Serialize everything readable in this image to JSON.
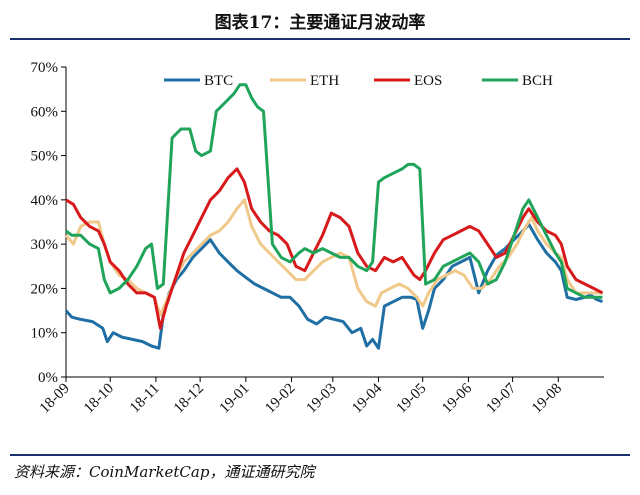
{
  "title": "图表17：主要通证月波动率",
  "source": "资料来源：CoinMarketCap，通证通研究院",
  "chart_data": {
    "type": "line",
    "ylim": [
      0,
      70
    ],
    "yticks": [
      0,
      10,
      20,
      30,
      40,
      50,
      60,
      70
    ],
    "y_tick_suffix": "%",
    "x_range": [
      0,
      365
    ],
    "xticks": [
      {
        "label": "18-09",
        "x": 0
      },
      {
        "label": "18-10",
        "x": 30
      },
      {
        "label": "18-11",
        "x": 61
      },
      {
        "label": "18-12",
        "x": 91
      },
      {
        "label": "19-01",
        "x": 122
      },
      {
        "label": "19-02",
        "x": 153
      },
      {
        "label": "19-03",
        "x": 181
      },
      {
        "label": "19-04",
        "x": 212
      },
      {
        "label": "19-05",
        "x": 242
      },
      {
        "label": "19-06",
        "x": 273
      },
      {
        "label": "19-07",
        "x": 303
      },
      {
        "label": "19-08",
        "x": 334
      }
    ],
    "legend_position": "top",
    "series": [
      {
        "name": "BTC",
        "color": "#1f6fa5",
        "points": [
          [
            0,
            15
          ],
          [
            4,
            13.5
          ],
          [
            10,
            13
          ],
          [
            18,
            12.5
          ],
          [
            25,
            11
          ],
          [
            28,
            8
          ],
          [
            32,
            10
          ],
          [
            38,
            9
          ],
          [
            45,
            8.5
          ],
          [
            52,
            8
          ],
          [
            58,
            7
          ],
          [
            63,
            6.5
          ],
          [
            66,
            14
          ],
          [
            70,
            19
          ],
          [
            75,
            22
          ],
          [
            80,
            24
          ],
          [
            86,
            27
          ],
          [
            92,
            29
          ],
          [
            98,
            31
          ],
          [
            104,
            28
          ],
          [
            110,
            26
          ],
          [
            116,
            24
          ],
          [
            122,
            22.5
          ],
          [
            128,
            21
          ],
          [
            134,
            20
          ],
          [
            140,
            19
          ],
          [
            146,
            18
          ],
          [
            152,
            18
          ],
          [
            158,
            16
          ],
          [
            164,
            13
          ],
          [
            170,
            12
          ],
          [
            176,
            13.5
          ],
          [
            182,
            13
          ],
          [
            188,
            12.5
          ],
          [
            194,
            10
          ],
          [
            200,
            11
          ],
          [
            204,
            7
          ],
          [
            208,
            8.5
          ],
          [
            212,
            6.5
          ],
          [
            216,
            16
          ],
          [
            222,
            17
          ],
          [
            228,
            18
          ],
          [
            234,
            18
          ],
          [
            238,
            17.5
          ],
          [
            242,
            11
          ],
          [
            246,
            15
          ],
          [
            250,
            20
          ],
          [
            256,
            22
          ],
          [
            262,
            25
          ],
          [
            268,
            26
          ],
          [
            274,
            27
          ],
          [
            280,
            19
          ],
          [
            286,
            24
          ],
          [
            292,
            27.5
          ],
          [
            298,
            29
          ],
          [
            304,
            31
          ],
          [
            310,
            33
          ],
          [
            314,
            34.5
          ],
          [
            320,
            31
          ],
          [
            326,
            28
          ],
          [
            332,
            26
          ],
          [
            336,
            24
          ],
          [
            340,
            18
          ],
          [
            346,
            17.5
          ],
          [
            352,
            18
          ],
          [
            356,
            18.5
          ],
          [
            360,
            17.5
          ],
          [
            364,
            17
          ]
        ]
      },
      {
        "name": "ETH",
        "color": "#f0c98a",
        "points": [
          [
            0,
            32
          ],
          [
            5,
            30
          ],
          [
            10,
            34
          ],
          [
            16,
            35
          ],
          [
            22,
            35
          ],
          [
            26,
            30
          ],
          [
            30,
            26
          ],
          [
            36,
            23
          ],
          [
            42,
            22
          ],
          [
            48,
            20
          ],
          [
            54,
            19
          ],
          [
            60,
            18
          ],
          [
            64,
            14
          ],
          [
            68,
            17
          ],
          [
            74,
            22
          ],
          [
            80,
            26
          ],
          [
            86,
            28
          ],
          [
            92,
            30
          ],
          [
            98,
            32
          ],
          [
            104,
            33
          ],
          [
            110,
            35
          ],
          [
            116,
            38
          ],
          [
            121,
            40
          ],
          [
            126,
            34
          ],
          [
            132,
            30
          ],
          [
            138,
            28
          ],
          [
            144,
            26
          ],
          [
            150,
            24
          ],
          [
            156,
            22
          ],
          [
            162,
            22
          ],
          [
            168,
            24
          ],
          [
            174,
            26
          ],
          [
            180,
            27
          ],
          [
            186,
            28
          ],
          [
            192,
            27
          ],
          [
            198,
            20
          ],
          [
            204,
            17
          ],
          [
            210,
            16
          ],
          [
            214,
            19
          ],
          [
            220,
            20
          ],
          [
            226,
            21
          ],
          [
            232,
            20
          ],
          [
            238,
            18
          ],
          [
            242,
            16
          ],
          [
            246,
            19
          ],
          [
            252,
            22
          ],
          [
            258,
            23
          ],
          [
            264,
            24
          ],
          [
            270,
            23
          ],
          [
            276,
            20
          ],
          [
            282,
            20
          ],
          [
            288,
            22
          ],
          [
            294,
            25
          ],
          [
            300,
            27
          ],
          [
            306,
            30
          ],
          [
            312,
            34
          ],
          [
            316,
            36
          ],
          [
            320,
            33
          ],
          [
            326,
            30
          ],
          [
            332,
            28
          ],
          [
            336,
            27
          ],
          [
            340,
            22
          ],
          [
            346,
            19
          ],
          [
            352,
            19
          ],
          [
            358,
            19
          ],
          [
            364,
            19
          ]
        ]
      },
      {
        "name": "EOS",
        "color": "#d7191c",
        "points": [
          [
            0,
            40
          ],
          [
            5,
            39
          ],
          [
            10,
            36
          ],
          [
            16,
            34
          ],
          [
            22,
            33
          ],
          [
            26,
            30
          ],
          [
            30,
            26
          ],
          [
            36,
            24
          ],
          [
            42,
            21
          ],
          [
            48,
            19
          ],
          [
            54,
            19
          ],
          [
            60,
            18
          ],
          [
            64,
            11
          ],
          [
            68,
            16
          ],
          [
            74,
            22
          ],
          [
            80,
            28
          ],
          [
            86,
            32
          ],
          [
            92,
            36
          ],
          [
            98,
            40
          ],
          [
            104,
            42
          ],
          [
            110,
            45
          ],
          [
            116,
            47
          ],
          [
            121,
            44
          ],
          [
            126,
            38
          ],
          [
            132,
            35
          ],
          [
            138,
            33
          ],
          [
            144,
            32
          ],
          [
            150,
            30
          ],
          [
            156,
            25
          ],
          [
            162,
            24
          ],
          [
            168,
            28
          ],
          [
            174,
            32
          ],
          [
            180,
            37
          ],
          [
            186,
            36
          ],
          [
            192,
            34
          ],
          [
            198,
            28
          ],
          [
            204,
            25
          ],
          [
            210,
            24
          ],
          [
            216,
            27
          ],
          [
            222,
            26
          ],
          [
            228,
            27
          ],
          [
            232,
            25
          ],
          [
            236,
            23
          ],
          [
            240,
            22
          ],
          [
            244,
            24
          ],
          [
            250,
            28
          ],
          [
            256,
            31
          ],
          [
            262,
            32
          ],
          [
            268,
            33
          ],
          [
            274,
            34
          ],
          [
            280,
            33
          ],
          [
            286,
            30
          ],
          [
            292,
            27
          ],
          [
            298,
            28
          ],
          [
            304,
            32
          ],
          [
            310,
            36
          ],
          [
            314,
            38
          ],
          [
            320,
            35
          ],
          [
            326,
            33
          ],
          [
            332,
            32
          ],
          [
            336,
            30
          ],
          [
            340,
            25
          ],
          [
            346,
            22
          ],
          [
            352,
            21
          ],
          [
            358,
            20
          ],
          [
            364,
            19
          ]
        ]
      },
      {
        "name": "BCH",
        "color": "#1fa45a",
        "points": [
          [
            0,
            33
          ],
          [
            4,
            32
          ],
          [
            10,
            32
          ],
          [
            16,
            30
          ],
          [
            22,
            29
          ],
          [
            26,
            22
          ],
          [
            30,
            19
          ],
          [
            36,
            20
          ],
          [
            42,
            22
          ],
          [
            48,
            25
          ],
          [
            54,
            29
          ],
          [
            58,
            30
          ],
          [
            62,
            20
          ],
          [
            66,
            21
          ],
          [
            72,
            54
          ],
          [
            78,
            56
          ],
          [
            84,
            56
          ],
          [
            88,
            51
          ],
          [
            92,
            50
          ],
          [
            98,
            51
          ],
          [
            102,
            60
          ],
          [
            108,
            62
          ],
          [
            114,
            64
          ],
          [
            118,
            66
          ],
          [
            122,
            66
          ],
          [
            126,
            63
          ],
          [
            130,
            61
          ],
          [
            134,
            60
          ],
          [
            140,
            30
          ],
          [
            146,
            27
          ],
          [
            152,
            26
          ],
          [
            158,
            28
          ],
          [
            162,
            29
          ],
          [
            168,
            28
          ],
          [
            174,
            29
          ],
          [
            180,
            28
          ],
          [
            186,
            27
          ],
          [
            192,
            27
          ],
          [
            198,
            25
          ],
          [
            204,
            24
          ],
          [
            208,
            26
          ],
          [
            212,
            44
          ],
          [
            216,
            45
          ],
          [
            222,
            46
          ],
          [
            228,
            47
          ],
          [
            232,
            48
          ],
          [
            236,
            48
          ],
          [
            240,
            47
          ],
          [
            244,
            21
          ],
          [
            250,
            22
          ],
          [
            256,
            25
          ],
          [
            262,
            26
          ],
          [
            268,
            27
          ],
          [
            274,
            28
          ],
          [
            280,
            26
          ],
          [
            286,
            21
          ],
          [
            292,
            22
          ],
          [
            298,
            26
          ],
          [
            304,
            32
          ],
          [
            310,
            38
          ],
          [
            314,
            40
          ],
          [
            320,
            36
          ],
          [
            326,
            32
          ],
          [
            332,
            28
          ],
          [
            336,
            26
          ],
          [
            340,
            20
          ],
          [
            346,
            19
          ],
          [
            352,
            18
          ],
          [
            358,
            18
          ],
          [
            364,
            18
          ]
        ]
      }
    ]
  }
}
